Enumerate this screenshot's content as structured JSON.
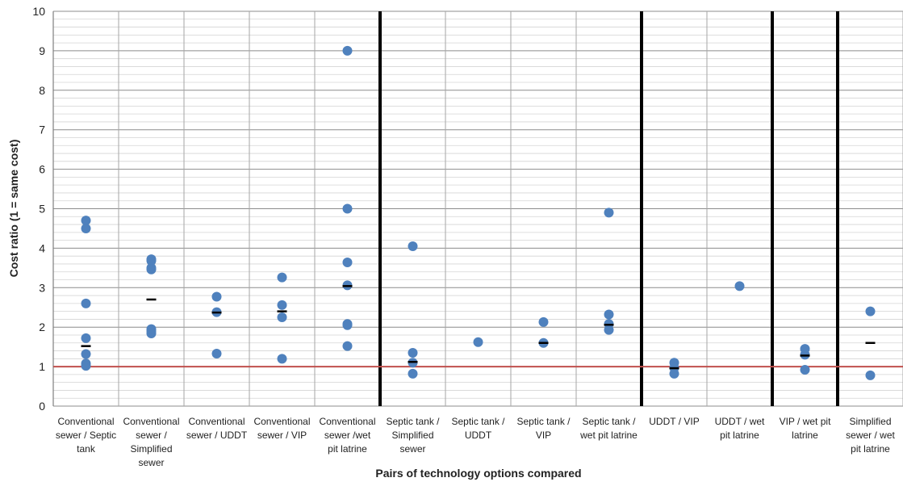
{
  "chart_data": {
    "type": "scatter",
    "xlabel": "Pairs of technology options compared",
    "ylabel": "Cost ratio (1 = same cost)",
    "ylim": [
      0,
      10
    ],
    "yticks": [
      0,
      1,
      2,
      3,
      4,
      5,
      6,
      7,
      8,
      9,
      10
    ],
    "minor_grid_step": 0.2,
    "reference_line": {
      "y": 1,
      "color": "#c0504d"
    },
    "marker_color": "#4f81bd",
    "mean_marker_color": "#000000",
    "group_separators_after": [
      5,
      9,
      11,
      12
    ],
    "categories": [
      {
        "label_lines": [
          "Conventional",
          "sewer / Septic",
          "tank"
        ],
        "points": [
          4.7,
          4.5,
          2.6,
          1.72,
          1.32,
          1.08,
          1.02
        ],
        "mean": 1.52
      },
      {
        "label_lines": [
          "Conventional",
          "sewer /",
          "Simplified",
          "sewer"
        ],
        "points": [
          3.72,
          3.68,
          3.5,
          3.46,
          1.95,
          1.9,
          1.84
        ],
        "mean": 2.7
      },
      {
        "label_lines": [
          "Conventional",
          "sewer / UDDT"
        ],
        "points": [
          2.77,
          2.38,
          1.33
        ],
        "mean": 2.37
      },
      {
        "label_lines": [
          "Conventional",
          "sewer / VIP"
        ],
        "points": [
          3.26,
          2.56,
          2.25,
          1.2
        ],
        "mean": 2.4
      },
      {
        "label_lines": [
          "Conventional",
          "sewer /wet",
          "pit latrine"
        ],
        "points": [
          9.0,
          5.0,
          3.64,
          3.06,
          2.08,
          2.05,
          1.52
        ],
        "mean": 3.04
      },
      {
        "label_lines": [
          "Septic tank /",
          "Simplified",
          "sewer"
        ],
        "points": [
          4.05,
          1.35,
          1.1,
          0.82
        ],
        "mean": 1.12
      },
      {
        "label_lines": [
          "Septic tank /",
          "UDDT"
        ],
        "points": [
          1.62
        ],
        "mean": null
      },
      {
        "label_lines": [
          "Septic tank /",
          "VIP"
        ],
        "points": [
          2.13,
          1.6
        ],
        "mean": 1.6
      },
      {
        "label_lines": [
          "Septic tank /",
          "wet pit latrine"
        ],
        "points": [
          4.9,
          2.32,
          2.08,
          1.93
        ],
        "mean": 2.06
      },
      {
        "label_lines": [
          "UDDT / VIP"
        ],
        "points": [
          1.1,
          0.97,
          0.82
        ],
        "mean": 0.96
      },
      {
        "label_lines": [
          "UDDT / wet",
          "pit latrine"
        ],
        "points": [
          3.04
        ],
        "mean": null
      },
      {
        "label_lines": [
          "VIP / wet pit",
          "latrine"
        ],
        "points": [
          1.45,
          1.3,
          0.92
        ],
        "mean": 1.28
      },
      {
        "label_lines": [
          "Simplified",
          "sewer / wet",
          "pit latrine"
        ],
        "points": [
          2.4,
          0.78
        ],
        "mean": 1.6
      }
    ]
  }
}
